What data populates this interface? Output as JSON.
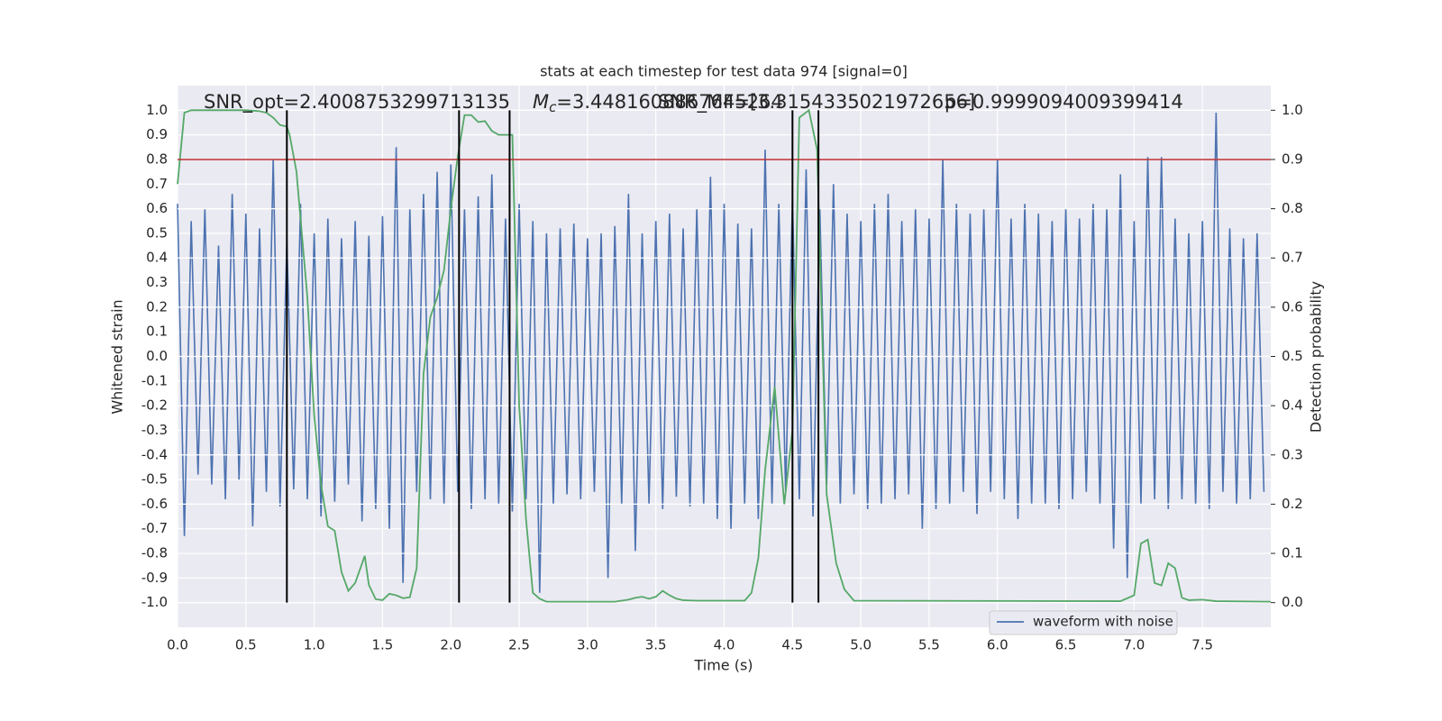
{
  "chart_data": {
    "type": "line",
    "title": "stats at each timestep for test data 974 [signal=0]",
    "annotations": [
      "SNR_opt=2.4008753299713135",
      [
        "M",
        "c",
        "=3.4481608867645264"
      ],
      "SNR_MF=[3.3154335021972656]",
      "p=0.9999094009399414"
    ],
    "xlabel": "Time (s)",
    "ylabel": "Whitened strain",
    "y2label": "Detection probability",
    "xlim": [
      0,
      8.0
    ],
    "xticks": [
      {
        "value": 0,
        "label": "0.0"
      },
      0.5,
      {
        "value": 1,
        "label": "1.0"
      },
      1.5,
      {
        "value": 2,
        "label": "2.0"
      },
      2.5,
      {
        "value": 3,
        "label": "3.0"
      },
      3.5,
      {
        "value": 4,
        "label": "4.0"
      },
      4.5,
      {
        "value": 5,
        "label": "5.0"
      },
      5.5,
      {
        "value": 6,
        "label": "6.0"
      },
      6.5,
      {
        "value": 7,
        "label": "7.0"
      },
      7.5
    ],
    "ylim": [
      -1.1,
      1.1
    ],
    "yticks": [
      {
        "value": 1,
        "label": "1.0"
      },
      0.9,
      0.8,
      0.7,
      0.6,
      0.5,
      0.4,
      0.3,
      0.2,
      0.1,
      {
        "value": 0,
        "label": "0.0"
      },
      -0.1,
      -0.2,
      -0.3,
      -0.4,
      -0.5,
      -0.6,
      -0.7,
      -0.8,
      -0.9,
      {
        "value": -1,
        "label": "-1.0"
      }
    ],
    "y2lim": [
      -0.05,
      1.05
    ],
    "y2ticks": [
      {
        "value": 0,
        "label": "0.0"
      },
      0.1,
      0.2,
      0.3,
      0.4,
      0.5,
      0.6,
      0.7,
      0.8,
      0.9,
      {
        "value": 1,
        "label": "1.0"
      }
    ],
    "grid": true,
    "legend": "lower right",
    "hlines": [
      {
        "value": 0.9,
        "axis": "y2",
        "color": "#c03030"
      }
    ],
    "vlines": {
      "x": [
        0.8,
        2.06,
        2.43,
        4.5,
        4.69
      ],
      "y2range": [
        0,
        1
      ],
      "color": "#000000"
    },
    "series": [
      {
        "name": "waveform with noise",
        "color": "#4c72b0",
        "x": [
          0,
          0.05,
          0.1,
          0.15,
          0.2,
          0.25,
          0.3,
          0.35,
          0.4,
          0.45,
          0.5,
          0.55,
          0.6,
          0.65,
          0.7,
          0.75,
          0.8,
          0.85,
          0.9,
          0.95,
          1,
          1.05,
          1.1,
          1.15,
          1.2,
          1.25,
          1.3,
          1.35,
          1.4,
          1.45,
          1.5,
          1.55,
          1.6,
          1.65,
          1.7,
          1.75,
          1.8,
          1.85,
          1.9,
          1.95,
          2,
          2.05,
          2.1,
          2.15,
          2.2,
          2.25,
          2.3,
          2.35,
          2.4,
          2.45,
          2.5,
          2.55,
          2.6,
          2.65,
          2.7,
          2.75,
          2.8,
          2.85,
          2.9,
          2.95,
          3,
          3.05,
          3.1,
          3.15,
          3.2,
          3.25,
          3.3,
          3.35,
          3.4,
          3.45,
          3.5,
          3.55,
          3.6,
          3.65,
          3.7,
          3.75,
          3.8,
          3.85,
          3.9,
          3.95,
          4,
          4.05,
          4.1,
          4.15,
          4.2,
          4.25,
          4.3,
          4.35,
          4.4,
          4.45,
          4.5,
          4.55,
          4.6,
          4.65,
          4.7,
          4.75,
          4.8,
          4.85,
          4.9,
          4.95,
          5,
          5.05,
          5.1,
          5.15,
          5.2,
          5.25,
          5.3,
          5.35,
          5.4,
          5.45,
          5.5,
          5.55,
          5.6,
          5.65,
          5.7,
          5.75,
          5.8,
          5.85,
          5.9,
          5.95,
          6,
          6.05,
          6.1,
          6.15,
          6.2,
          6.25,
          6.3,
          6.35,
          6.4,
          6.45,
          6.5,
          6.55,
          6.6,
          6.65,
          6.7,
          6.75,
          6.8,
          6.85,
          6.9,
          6.95,
          7,
          7.05,
          7.1,
          7.15,
          7.2,
          7.25,
          7.3,
          7.35,
          7.4,
          7.45,
          7.5,
          7.55,
          7.6,
          7.65,
          7.7,
          7.75,
          7.8,
          7.85,
          7.9,
          7.95
        ],
        "values": [
          0.62,
          -0.73,
          0.55,
          -0.48,
          0.6,
          -0.52,
          0.45,
          -0.58,
          0.66,
          -0.5,
          0.58,
          -0.69,
          0.52,
          -0.55,
          0.8,
          -0.61,
          0.47,
          -0.54,
          0.62,
          -0.58,
          0.5,
          -0.65,
          0.56,
          -0.59,
          0.48,
          -0.52,
          0.55,
          -0.67,
          0.49,
          -0.62,
          0.57,
          -0.7,
          0.85,
          -0.92,
          0.6,
          -0.55,
          0.66,
          -0.58,
          0.75,
          -0.6,
          0.78,
          -0.55,
          0.6,
          -0.62,
          0.65,
          -0.58,
          0.74,
          -0.6,
          0.56,
          -0.63,
          0.62,
          -0.58,
          0.55,
          -0.96,
          0.5,
          -0.6,
          0.52,
          -0.56,
          0.54,
          -0.58,
          0.48,
          -0.55,
          0.5,
          -0.9,
          0.53,
          -0.6,
          0.66,
          -0.79,
          0.5,
          -0.6,
          0.55,
          -0.62,
          0.58,
          -0.57,
          0.52,
          -0.61,
          0.6,
          -0.6,
          0.73,
          -0.66,
          0.62,
          -0.7,
          0.54,
          -0.6,
          0.52,
          -0.66,
          0.84,
          -0.6,
          0.62,
          -0.55,
          0.64,
          -0.58,
          0.76,
          -0.65,
          0.6,
          -0.52,
          0.7,
          -0.6,
          0.58,
          -0.56,
          0.55,
          -0.62,
          0.62,
          -0.6,
          0.66,
          -0.58,
          0.55,
          -0.56,
          0.6,
          -0.7,
          0.56,
          -0.62,
          0.8,
          -0.6,
          0.62,
          -0.55,
          0.58,
          -0.64,
          0.6,
          -0.55,
          0.8,
          -0.58,
          0.56,
          -0.66,
          0.62,
          -0.6,
          0.58,
          -0.6,
          0.55,
          -0.62,
          0.6,
          -0.58,
          0.56,
          -0.55,
          0.62,
          -0.6,
          0.6,
          -0.78,
          0.74,
          -0.9,
          0.55,
          -0.6,
          0.81,
          -0.58,
          0.81,
          -0.62,
          0.56,
          -0.58,
          0.5,
          -0.6,
          0.55,
          -0.62,
          0.99,
          -0.55,
          0.52,
          -0.6,
          0.48,
          -0.58,
          0.5,
          -0.55
        ]
      },
      {
        "color": "#55a868",
        "axis": "y2",
        "x": [
          0,
          0.05,
          0.1,
          0.2,
          0.3,
          0.4,
          0.5,
          0.6,
          0.65,
          0.7,
          0.75,
          0.8,
          0.82,
          0.87,
          0.95,
          1,
          1.05,
          1.1,
          1.15,
          1.2,
          1.25,
          1.3,
          1.37,
          1.4,
          1.45,
          1.5,
          1.55,
          1.6,
          1.65,
          1.7,
          1.75,
          1.8,
          1.85,
          1.9,
          1.95,
          2,
          2.05,
          2.1,
          2.15,
          2.2,
          2.25,
          2.3,
          2.35,
          2.45,
          2.5,
          2.55,
          2.6,
          2.65,
          2.7,
          3.2,
          3.3,
          3.35,
          3.4,
          3.45,
          3.5,
          3.55,
          3.6,
          3.65,
          3.7,
          3.8,
          4.15,
          4.2,
          4.25,
          4.3,
          4.37,
          4.44,
          4.5,
          4.55,
          4.62,
          4.68,
          4.75,
          4.82,
          4.88,
          4.95,
          6.9,
          7,
          7.05,
          7.1,
          7.15,
          7.2,
          7.25,
          7.3,
          7.35,
          7.4,
          7.5,
          7.6,
          8
        ],
        "values": [
          0.85,
          0.995,
          1,
          1,
          1,
          1,
          1,
          0.998,
          0.995,
          0.985,
          0.97,
          0.967,
          0.95,
          0.876,
          0.62,
          0.38,
          0.24,
          0.155,
          0.146,
          0.062,
          0.024,
          0.04,
          0.095,
          0.036,
          0.007,
          0.005,
          0.018,
          0.015,
          0.009,
          0.011,
          0.07,
          0.465,
          0.58,
          0.62,
          0.675,
          0.8,
          0.905,
          0.99,
          0.99,
          0.976,
          0.978,
          0.958,
          0.95,
          0.95,
          0.4,
          0.17,
          0.02,
          0.008,
          0.002,
          0.002,
          0.006,
          0.01,
          0.012,
          0.008,
          0.012,
          0.024,
          0.015,
          0.008,
          0.005,
          0.004,
          0.004,
          0.02,
          0.09,
          0.27,
          0.438,
          0.2,
          0.35,
          0.985,
          1,
          0.92,
          0.22,
          0.08,
          0.027,
          0.004,
          0.003,
          0.015,
          0.12,
          0.128,
          0.04,
          0.035,
          0.08,
          0.07,
          0.01,
          0.005,
          0.006,
          0.003,
          0.002
        ]
      }
    ]
  }
}
